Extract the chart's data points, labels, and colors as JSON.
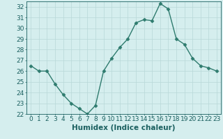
{
  "x": [
    0,
    1,
    2,
    3,
    4,
    5,
    6,
    7,
    8,
    9,
    10,
    11,
    12,
    13,
    14,
    15,
    16,
    17,
    18,
    19,
    20,
    21,
    22,
    23
  ],
  "y": [
    26.5,
    26.0,
    26.0,
    24.8,
    23.8,
    23.0,
    22.5,
    22.0,
    22.8,
    26.0,
    27.2,
    28.2,
    29.0,
    30.5,
    30.8,
    30.7,
    32.3,
    31.8,
    29.0,
    28.5,
    27.2,
    26.5,
    26.3,
    26.0
  ],
  "line_color": "#2e7b6e",
  "marker": "D",
  "marker_size": 2.5,
  "bg_color": "#d5eeee",
  "grid_color": "#b8d8d8",
  "tick_color": "#1a5f5f",
  "xlabel": "Humidex (Indice chaleur)",
  "ylim": [
    22,
    32.5
  ],
  "yticks": [
    22,
    23,
    24,
    25,
    26,
    27,
    28,
    29,
    30,
    31,
    32
  ],
  "xticks": [
    0,
    1,
    2,
    3,
    4,
    5,
    6,
    7,
    8,
    9,
    10,
    11,
    12,
    13,
    14,
    15,
    16,
    17,
    18,
    19,
    20,
    21,
    22,
    23
  ],
  "xlabel_fontsize": 7.5,
  "tick_fontsize": 6.5,
  "line_width": 1.0
}
